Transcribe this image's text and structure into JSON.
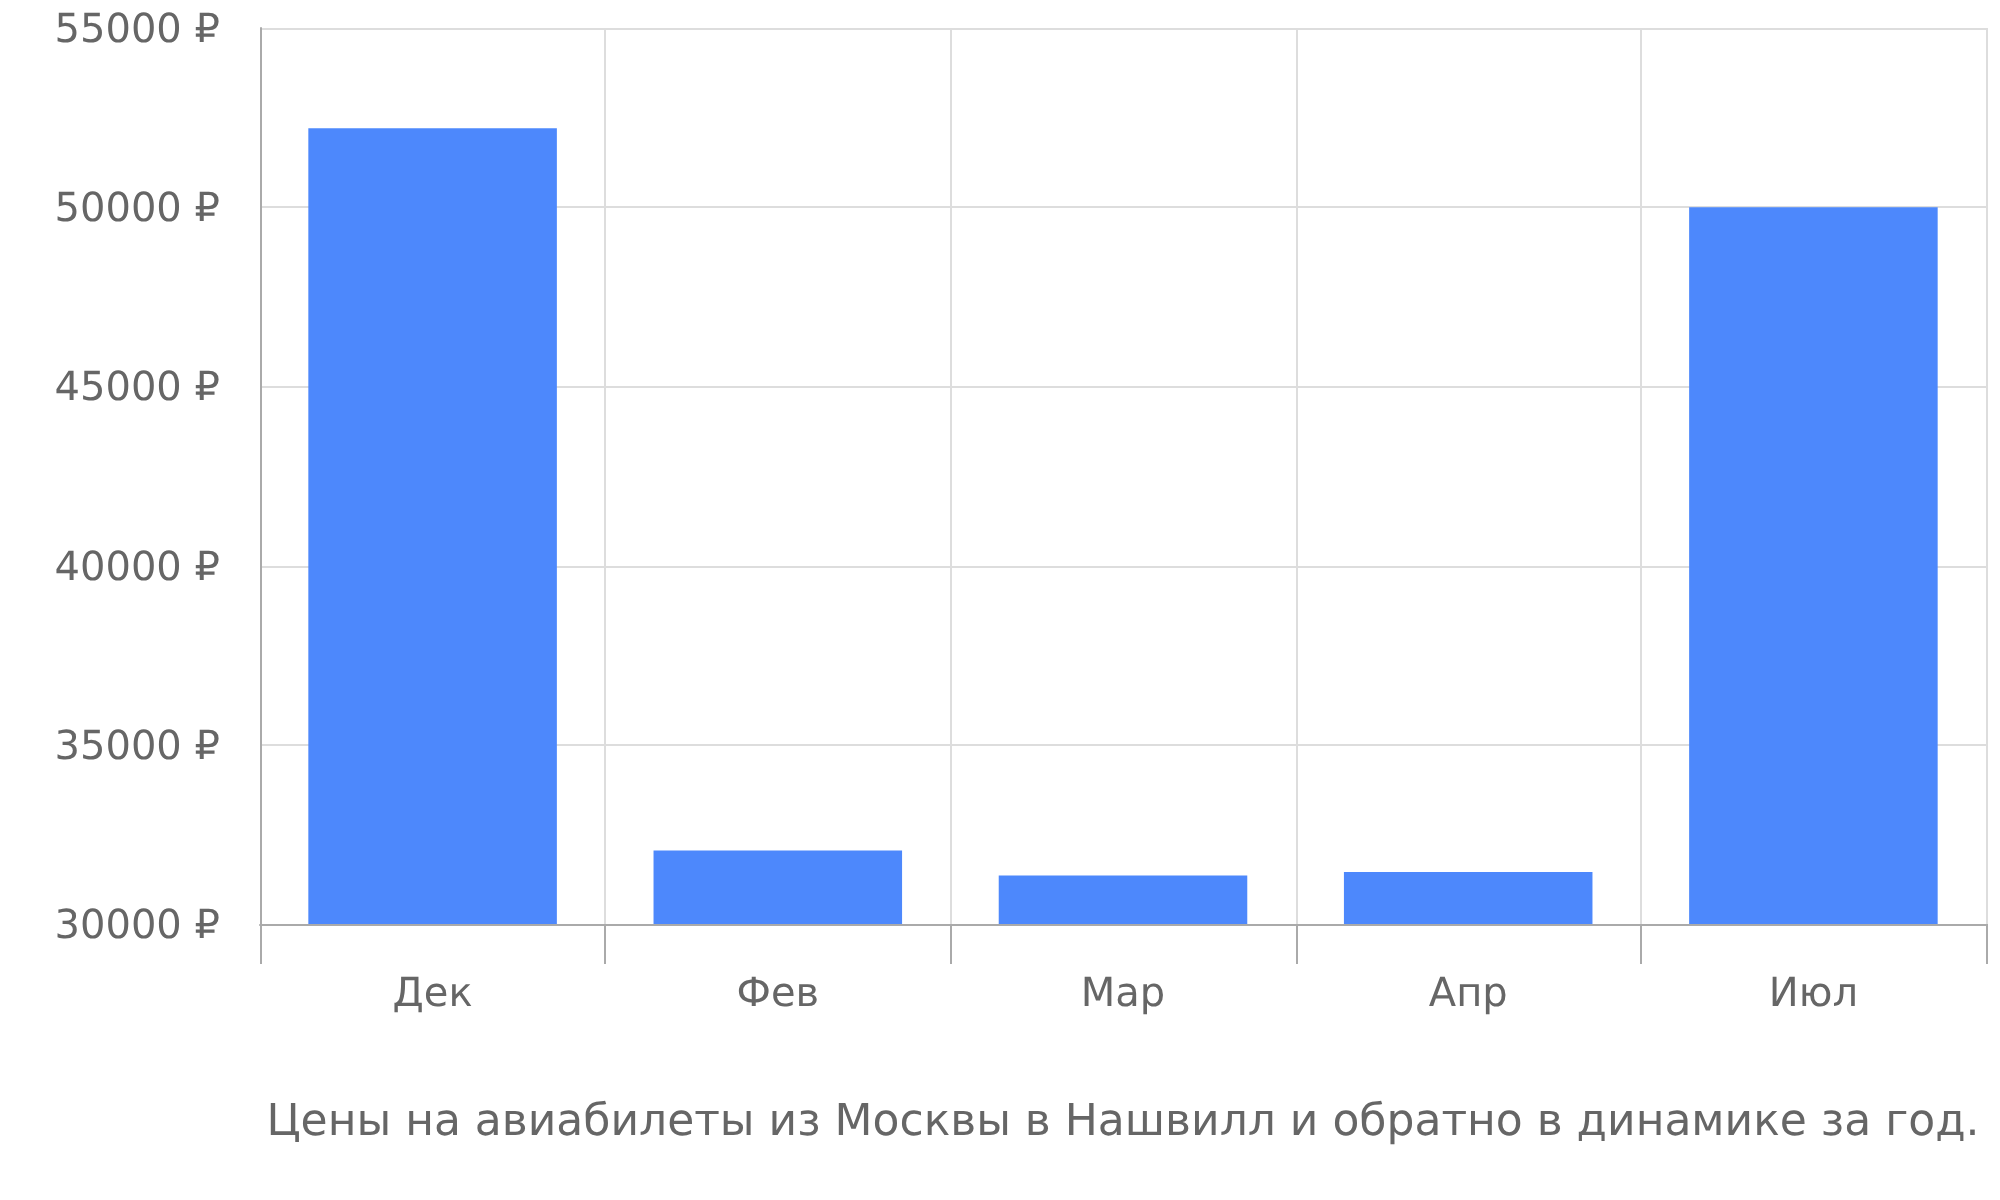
{
  "chart_data": {
    "type": "bar",
    "xlabel": "Цены на авиабилеты из Москвы в Нашвилл и обратно в динамике за год.",
    "categories": [
      "Дек",
      "Фев",
      "Мар",
      "Апр",
      "Июл"
    ],
    "values": [
      52200,
      32050,
      31350,
      31450,
      50000
    ],
    "color": "#4d88fc",
    "ylim": [
      30000,
      55000
    ],
    "yticks": [
      {
        "value": 30000,
        "label": "30000 ₽"
      },
      {
        "value": 35000,
        "label": "35000 ₽"
      },
      {
        "value": 40000,
        "label": "40000 ₽"
      },
      {
        "value": 45000,
        "label": "45000 ₽"
      },
      {
        "value": 50000,
        "label": "50000 ₽"
      },
      {
        "value": 55000,
        "label": "55000 ₽"
      }
    ],
    "grid": true
  }
}
